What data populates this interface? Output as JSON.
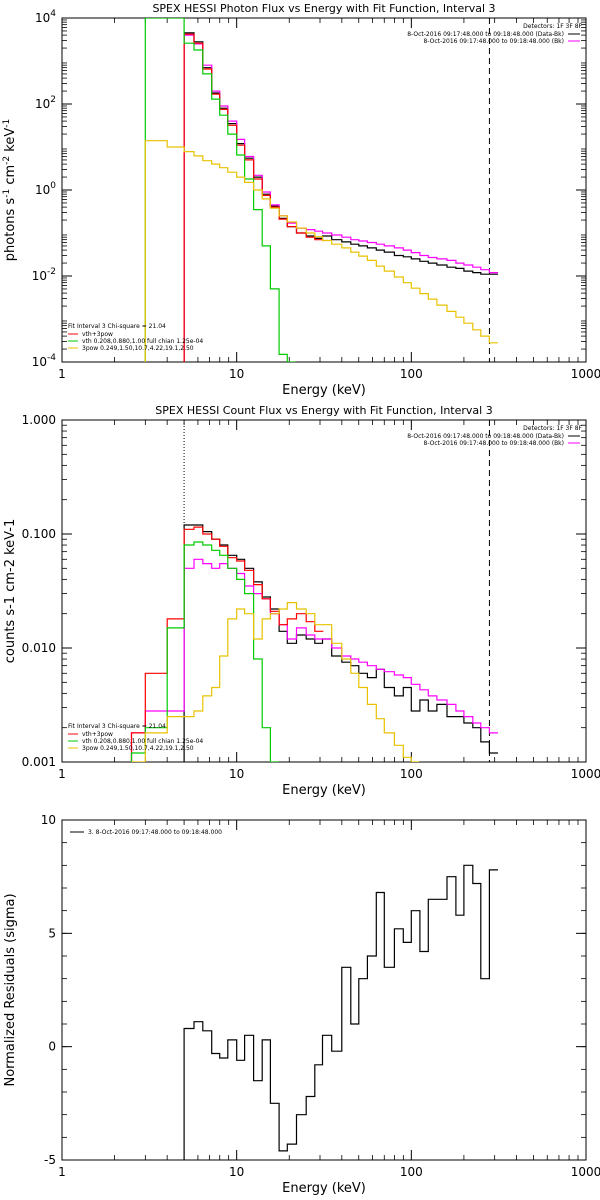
{
  "chart_data": [
    {
      "type": "line",
      "title": "SPEX HESSI Photon Flux vs Energy with Fit Function, Interval 3",
      "xlabel": "Energy (keV)",
      "ylabel_base": "photons s",
      "ylabel_sup1": "-1",
      "ylabel_mid": " cm",
      "ylabel_sup2": "-2",
      "ylabel_tail": " keV",
      "ylabel_sup3": "-1",
      "xscale": "log",
      "yscale": "log",
      "xlim": [
        1,
        1000
      ],
      "ylim": [
        0.0001,
        10000
      ],
      "x_ticks": [
        {
          "v": 1,
          "label": "1"
        },
        {
          "v": 10,
          "label": "10"
        },
        {
          "v": 100,
          "label": "100"
        },
        {
          "v": 1000,
          "label": "1000"
        }
      ],
      "y_ticks": [
        {
          "v": 0.0001,
          "base": "10",
          "exp": "-4"
        },
        {
          "v": 0.01,
          "base": "10",
          "exp": "-2"
        },
        {
          "v": 1,
          "base": "10",
          "exp": "0"
        },
        {
          "v": 100,
          "base": "10",
          "exp": "2"
        },
        {
          "v": 10000,
          "base": "10",
          "exp": "4"
        }
      ],
      "legend_top_right": {
        "detectors": "Detectors: 1F 3F 8F",
        "lines": [
          {
            "text": "8-Oct-2016 09:17:48.000 to 09:18:48.000 (Data-Bk)",
            "color": "#000000"
          },
          {
            "text": "8-Oct-2016 09:17:48.000 to 09:18:48.000 (Bk)",
            "color": "#ff00ff"
          }
        ]
      },
      "legend_bottom_left": {
        "header": "Fit Interval  3     Chi-square = 21.04",
        "lines": [
          {
            "text": "vth+3pow",
            "color": "#ff0000"
          },
          {
            "text": "vth 0.208,0.880,1.00   full chian 1.25e-04",
            "color": "#00cc00"
          },
          {
            "text": "3pow 0.249,1.50,10.7,4.22,19.1,2.50",
            "color": "#e8c200"
          }
        ]
      },
      "vlines": [
        {
          "x": 5.0,
          "style": "dotted",
          "color": "#000000"
        },
        {
          "x": 280,
          "style": "dashed",
          "color": "#000000"
        }
      ],
      "series": [
        {
          "id": "data_bk",
          "color": "#000000",
          "x": [
            5.0,
            5.7,
            6.4,
            7.2,
            8.0,
            8.9,
            10.0,
            11.1,
            12.5,
            14.0,
            15.6,
            17.5,
            19.5,
            22,
            25,
            28,
            31,
            35,
            40,
            45,
            50,
            56,
            63,
            70,
            80,
            90,
            100,
            112,
            125,
            140,
            160,
            180,
            200,
            225,
            250,
            280
          ],
          "y": [
            4500,
            2800,
            700,
            180,
            80,
            35,
            12,
            5.5,
            2.0,
            0.8,
            0.42,
            0.22,
            0.14,
            0.1,
            0.085,
            0.075,
            0.085,
            0.07,
            0.062,
            0.055,
            0.05,
            0.045,
            0.04,
            0.036,
            0.03,
            0.028,
            0.025,
            0.022,
            0.02,
            0.018,
            0.016,
            0.015,
            0.013,
            0.012,
            0.011,
            0.011
          ]
        },
        {
          "id": "bk",
          "color": "#ff00ff",
          "x": [
            5.0,
            5.7,
            6.4,
            7.2,
            8.0,
            8.9,
            10.0,
            11.1,
            12.5,
            14.0,
            15.6,
            17.5,
            19.5,
            22,
            25,
            28,
            31,
            35,
            40,
            45,
            50,
            56,
            63,
            70,
            80,
            90,
            100,
            112,
            125,
            140,
            160,
            180,
            200,
            225,
            250,
            280
          ],
          "y": [
            4000,
            2500,
            800,
            200,
            90,
            40,
            15,
            6.0,
            2.2,
            0.9,
            0.45,
            0.25,
            0.17,
            0.13,
            0.12,
            0.11,
            0.1,
            0.09,
            0.08,
            0.07,
            0.065,
            0.06,
            0.055,
            0.05,
            0.045,
            0.04,
            0.035,
            0.03,
            0.027,
            0.025,
            0.023,
            0.02,
            0.018,
            0.016,
            0.014,
            0.012
          ]
        },
        {
          "id": "vth_3pow",
          "color": "#ff0000",
          "x": [
            5.0,
            5.7,
            6.4,
            7.2,
            8.0,
            8.9,
            10.0,
            11.1,
            12.5,
            14.0,
            15.6,
            17.5,
            19.5,
            22,
            25,
            28
          ],
          "y": [
            4200,
            2600,
            650,
            170,
            75,
            32,
            11,
            5.0,
            1.8,
            0.75,
            0.4,
            0.21,
            0.14,
            0.1,
            0.08,
            0.07
          ]
        },
        {
          "id": "vth",
          "color": "#00cc00",
          "x": [
            3.0,
            3.4,
            5.0,
            5.7,
            6.4,
            7.2,
            8.0,
            8.9,
            10.0,
            11.1,
            12.5,
            14.0,
            15.6,
            17.5,
            19.5
          ],
          "y": [
            10000,
            10000,
            2600,
            1800,
            500,
            130,
            55,
            20,
            6.5,
            1.8,
            0.35,
            0.05,
            0.005,
            0.00015,
            0.0001
          ]
        },
        {
          "id": "three_pow",
          "color": "#e8c200",
          "x": [
            3.0,
            4.0,
            5.0,
            5.7,
            6.4,
            7.2,
            8.0,
            8.9,
            10.0,
            11.1,
            12.5,
            14.0,
            15.6,
            17.5,
            19.5,
            22,
            25,
            28,
            31,
            35,
            40,
            45,
            50,
            56,
            63,
            70,
            80,
            90,
            100,
            112,
            125,
            140,
            160,
            180,
            200,
            225,
            250,
            280
          ],
          "y": [
            14,
            10,
            7.8,
            6.2,
            4.8,
            4.0,
            3.3,
            2.6,
            2.0,
            1.5,
            1.0,
            0.62,
            0.38,
            0.25,
            0.18,
            0.13,
            0.1,
            0.082,
            0.067,
            0.055,
            0.045,
            0.036,
            0.029,
            0.023,
            0.017,
            0.013,
            0.0095,
            0.007,
            0.0052,
            0.0039,
            0.0029,
            0.0021,
            0.0015,
            0.0011,
            0.0008,
            0.00056,
            0.0004,
            0.00028
          ]
        }
      ]
    },
    {
      "type": "line",
      "title": "SPEX HESSI Count Flux vs Energy with Fit Function, Interval 3",
      "xlabel": "Energy (keV)",
      "ylabel": "counts s-1 cm-2 keV-1",
      "xscale": "log",
      "yscale": "log",
      "xlim": [
        1,
        1000
      ],
      "ylim": [
        0.001,
        1.0
      ],
      "x_ticks": [
        {
          "v": 1,
          "label": "1"
        },
        {
          "v": 10,
          "label": "10"
        },
        {
          "v": 100,
          "label": "100"
        },
        {
          "v": 1000,
          "label": "1000"
        }
      ],
      "y_ticks": [
        {
          "v": 0.001,
          "label": "0.001"
        },
        {
          "v": 0.01,
          "label": "0.010"
        },
        {
          "v": 0.1,
          "label": "0.100"
        },
        {
          "v": 1.0,
          "label": "1.000"
        }
      ],
      "legend_top_right": {
        "detectors": "Detectors: 1F 3F 8F",
        "lines": [
          {
            "text": "8-Oct-2016 09:17:48.000 to 09:18:48.000 (Data-Bk)",
            "color": "#000000"
          },
          {
            "text": "8-Oct-2016 09:17:48.000 to 09:18:48.000 (Bk)",
            "color": "#ff00ff"
          }
        ]
      },
      "legend_bottom_left": {
        "header": "Fit Interval  3     Chi-square = 21.04",
        "lines": [
          {
            "text": "vth+3pow",
            "color": "#ff0000"
          },
          {
            "text": "vth 0.208,0.880,1.00   full chian 1.25e-04",
            "color": "#00cc00"
          },
          {
            "text": "3pow 0.249,1.50,10.7,4.22,19.1,2.50",
            "color": "#e8c200"
          }
        ]
      },
      "vlines": [
        {
          "x": 5.0,
          "style": "dotted",
          "color": "#000000"
        },
        {
          "x": 280,
          "style": "dashed",
          "color": "#000000"
        }
      ],
      "series": [
        {
          "id": "data_bk",
          "color": "#000000",
          "x": [
            5.0,
            5.7,
            6.4,
            7.2,
            8.0,
            8.9,
            10.0,
            11.1,
            12.5,
            14.0,
            15.6,
            17.5,
            19.5,
            22,
            25,
            28,
            31,
            35,
            40,
            45,
            50,
            56,
            63,
            70,
            80,
            90,
            100,
            112,
            125,
            140,
            160,
            180,
            200,
            225,
            250,
            280
          ],
          "y": [
            0.12,
            0.12,
            0.105,
            0.09,
            0.08,
            0.065,
            0.06,
            0.05,
            0.038,
            0.028,
            0.022,
            0.014,
            0.011,
            0.013,
            0.012,
            0.011,
            0.012,
            0.0085,
            0.0075,
            0.007,
            0.006,
            0.0055,
            0.0065,
            0.0045,
            0.0038,
            0.0045,
            0.0028,
            0.0035,
            0.0028,
            0.0032,
            0.0025,
            0.0025,
            0.0022,
            0.002,
            0.0015,
            0.0012
          ]
        },
        {
          "id": "bk",
          "color": "#ff00ff",
          "x": [
            2.5,
            3.0,
            4.0,
            5.0,
            5.7,
            6.4,
            7.2,
            8.0,
            8.9,
            10.0,
            11.1,
            12.5,
            14.0,
            15.6,
            17.5,
            19.5,
            22,
            25,
            28,
            31,
            35,
            40,
            45,
            50,
            56,
            63,
            70,
            80,
            90,
            100,
            112,
            125,
            140,
            160,
            180,
            200,
            225,
            250,
            280
          ],
          "y": [
            0.0018,
            0.0028,
            0.0028,
            0.05,
            0.06,
            0.055,
            0.05,
            0.055,
            0.05,
            0.045,
            0.035,
            0.03,
            0.027,
            0.02,
            0.016,
            0.012,
            0.015,
            0.013,
            0.012,
            0.012,
            0.01,
            0.0085,
            0.008,
            0.0075,
            0.007,
            0.0065,
            0.0062,
            0.0058,
            0.0055,
            0.0048,
            0.0043,
            0.0038,
            0.0035,
            0.0032,
            0.0028,
            0.0025,
            0.0022,
            0.002,
            0.0018
          ]
        },
        {
          "id": "vth_3pow",
          "color": "#ff0000",
          "x": [
            2.5,
            3.0,
            4.0,
            5.0,
            5.7,
            6.4,
            7.2,
            8.0,
            8.9,
            10.0,
            11.1,
            12.5,
            14.0,
            15.6,
            17.5,
            19.5,
            22,
            25,
            28
          ],
          "y": [
            0.0018,
            0.006,
            0.018,
            0.11,
            0.115,
            0.1,
            0.09,
            0.078,
            0.062,
            0.058,
            0.048,
            0.036,
            0.027,
            0.021,
            0.016,
            0.018,
            0.02,
            0.017,
            0.014
          ]
        },
        {
          "id": "vth",
          "color": "#00cc00",
          "x": [
            2.5,
            3.0,
            4.0,
            5.0,
            5.7,
            6.4,
            7.2,
            8.0,
            8.9,
            10.0,
            11.1,
            12.5,
            14.0,
            15.6
          ],
          "y": [
            0.0012,
            0.002,
            0.015,
            0.08,
            0.085,
            0.08,
            0.072,
            0.065,
            0.05,
            0.04,
            0.03,
            0.008,
            0.002,
            0.001
          ]
        },
        {
          "id": "three_pow",
          "color": "#e8c200",
          "x": [
            2.5,
            3.0,
            4.0,
            5.0,
            5.7,
            6.4,
            7.2,
            8.0,
            8.9,
            10.0,
            11.1,
            12.5,
            14.0,
            15.6,
            17.5,
            19.5,
            22,
            25,
            28,
            31,
            35,
            40,
            45,
            50,
            56,
            63,
            70,
            80,
            90,
            100
          ],
          "y": [
            0.001,
            0.0018,
            0.0025,
            0.0025,
            0.0028,
            0.0038,
            0.0045,
            0.0085,
            0.018,
            0.022,
            0.02,
            0.012,
            0.018,
            0.02,
            0.022,
            0.025,
            0.022,
            0.02,
            0.016,
            0.016,
            0.011,
            0.008,
            0.006,
            0.0045,
            0.0032,
            0.0024,
            0.0018,
            0.0014,
            0.0011,
            0.001
          ]
        }
      ]
    },
    {
      "type": "line",
      "title": "",
      "xlabel": "Energy (keV)",
      "ylabel": "Normalized Residuals (sigma)",
      "xscale": "log",
      "yscale": "linear",
      "xlim": [
        1,
        1000
      ],
      "ylim": [
        -5,
        10
      ],
      "x_ticks": [
        {
          "v": 1,
          "label": "1"
        },
        {
          "v": 10,
          "label": "10"
        },
        {
          "v": 100,
          "label": "100"
        },
        {
          "v": 1000,
          "label": "1000"
        }
      ],
      "y_ticks": [
        {
          "v": -5,
          "label": "-5"
        },
        {
          "v": 0,
          "label": "0"
        },
        {
          "v": 5,
          "label": "5"
        },
        {
          "v": 10,
          "label": "10"
        }
      ],
      "legend_top_left": {
        "lines": [
          {
            "text": "3.  8-Oct-2016 09:17:48.000 to 09:18:48.000",
            "color": "#000000"
          }
        ]
      },
      "series": [
        {
          "id": "residuals",
          "color": "#000000",
          "x": [
            5.0,
            5.7,
            6.4,
            7.2,
            8.0,
            8.9,
            10.0,
            11.1,
            12.5,
            14.0,
            15.6,
            17.5,
            19.5,
            22,
            25,
            28,
            31,
            35,
            40,
            45,
            50,
            56,
            63,
            70,
            80,
            90,
            100,
            112,
            125,
            140,
            160,
            180,
            200,
            225,
            250,
            280
          ],
          "y": [
            0.8,
            1.1,
            0.7,
            -0.3,
            -0.5,
            0.3,
            -0.6,
            0.5,
            -1.5,
            0.3,
            -2.5,
            -4.6,
            -4.3,
            -3.0,
            -2.2,
            -0.8,
            0.5,
            -0.2,
            3.5,
            1.0,
            3.0,
            4.0,
            6.8,
            3.5,
            5.2,
            4.6,
            6.0,
            4.2,
            6.5,
            6.5,
            7.5,
            5.8,
            8.0,
            7.2,
            3.0,
            7.8
          ]
        }
      ]
    }
  ]
}
